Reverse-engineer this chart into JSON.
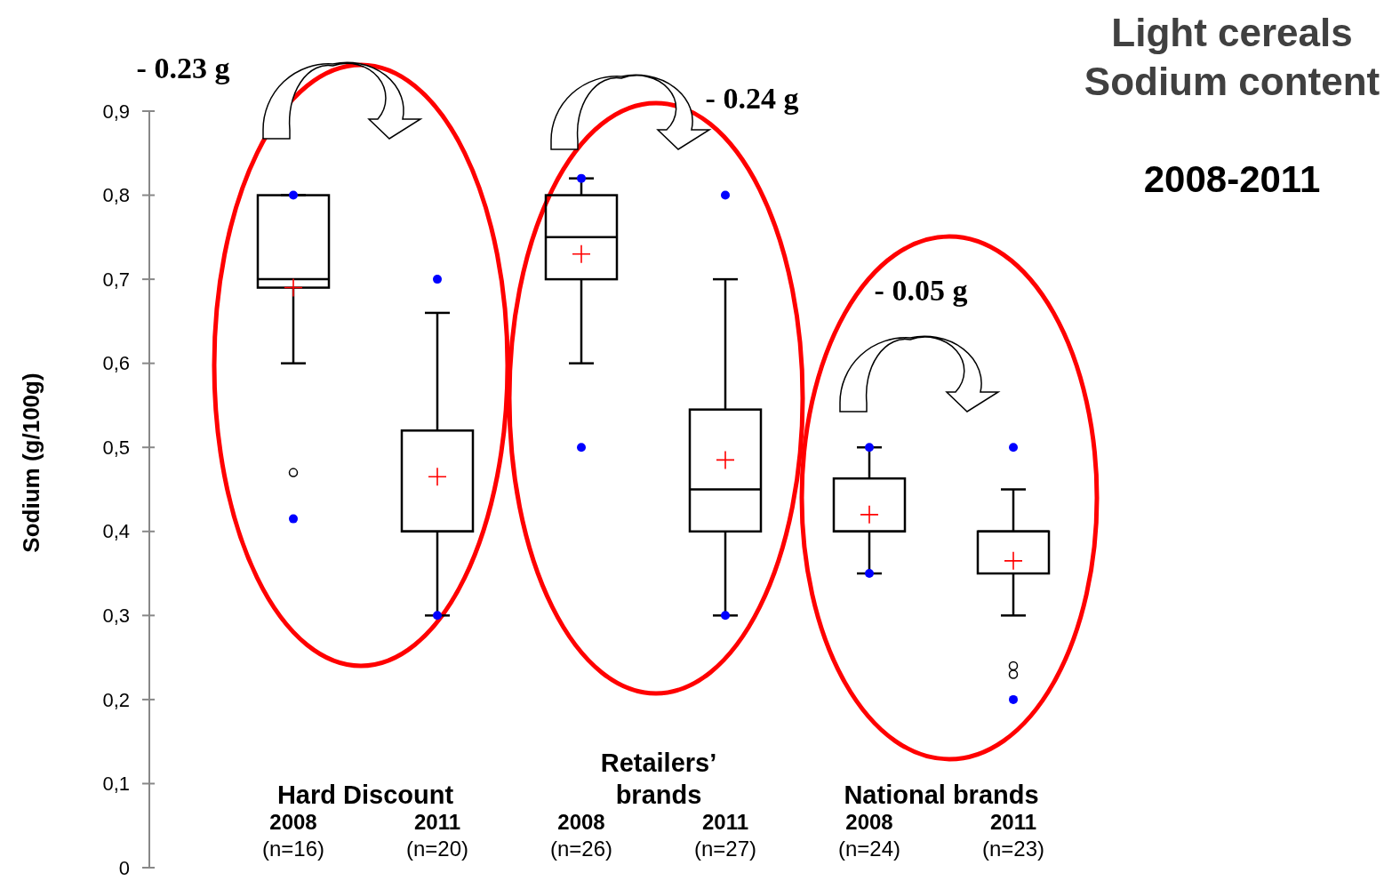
{
  "chart_data": {
    "type": "box",
    "title": "Light cereals Sodium content",
    "subtitle": "2008-2011",
    "ylabel": "Sodium (g/100g)",
    "categories": [
      "2008\n(n=16)",
      "2011\n(n=20)",
      "2008\n(n=26)",
      "2011\n(n=27)",
      "2008\n(n=24)",
      "2011\n(n=23)"
    ],
    "boxes": [
      {
        "low": 0.6,
        "q1": 0.69,
        "median": 0.7,
        "q3": 0.8,
        "high": 0.8,
        "mean": 0.69,
        "outliers": [
          0.47
        ]
      },
      {
        "low": 0.3,
        "q1": 0.4,
        "median": 0.4,
        "q3": 0.52,
        "high": 0.66,
        "mean": 0.465
      },
      {
        "low": 0.6,
        "q1": 0.7,
        "median": 0.75,
        "q3": 0.8,
        "high": 0.82,
        "mean": 0.73
      },
      {
        "low": 0.3,
        "q1": 0.4,
        "median": 0.45,
        "q3": 0.545,
        "high": 0.7,
        "mean": 0.485
      },
      {
        "low": 0.35,
        "q1": 0.4,
        "median": 0.4,
        "q3": 0.463,
        "high": 0.5,
        "mean": 0.42
      },
      {
        "low": 0.3,
        "q1": 0.35,
        "median": 0.4,
        "q3": 0.4,
        "high": 0.45,
        "mean": 0.365,
        "outliers": [
          0.23,
          0.24
        ]
      }
    ],
    "series": [
      {
        "type": "scatter",
        "color": "#0000ff",
        "values": [
          0.415,
          0.3,
          0.5,
          0.3,
          0.35,
          0.2
        ]
      },
      {
        "type": "scatter",
        "color": "#0000ff",
        "values": [
          0.8,
          0.7,
          0.82,
          0.8,
          0.5,
          0.5
        ]
      }
    ],
    "ylim": [
      0,
      0.9
    ],
    "yticks": [
      0,
      {
        "value": 0.1,
        "label": "0,1"
      },
      {
        "value": 0.2,
        "label": "0,2"
      },
      {
        "value": 0.3,
        "label": "0,3"
      },
      {
        "value": 0.4,
        "label": "0,4"
      },
      {
        "value": 0.5,
        "label": "0,5"
      },
      {
        "value": 0.6,
        "label": "0,6"
      },
      {
        "value": 0.7,
        "label": "0,7"
      },
      {
        "value": 0.8,
        "label": "0,8"
      },
      {
        "value": 0.9,
        "label": "0,9"
      }
    ],
    "marker": "circle",
    "annotations": [
      "Hard Discount",
      "Retailers’ brands",
      "National brands",
      "- 0.23 g",
      "- 0.24 g",
      "- 0.05 g"
    ]
  }
}
